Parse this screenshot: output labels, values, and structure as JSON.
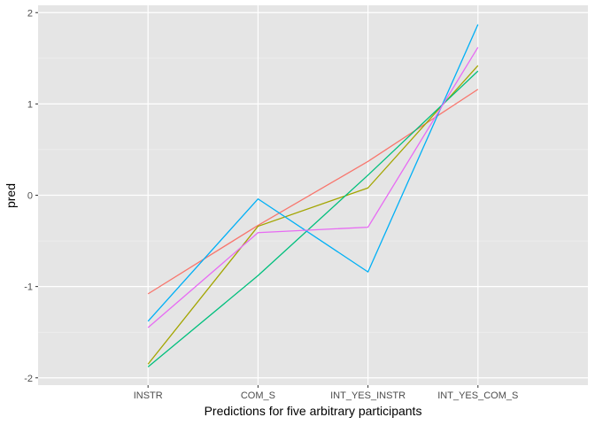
{
  "chart_data": {
    "type": "line",
    "categories": [
      "INSTR",
      "COM_S",
      "INT_YES_INSTR",
      "INT_YES_COM_S"
    ],
    "xlabel": "Predictions for five arbitrary participants",
    "ylabel": "pred",
    "ylim": [
      -2.08,
      2.08
    ],
    "yticks": [
      -2,
      -1,
      0,
      1,
      2
    ],
    "ytick_labels": [
      "-2",
      "-1",
      "0",
      "1",
      "2"
    ],
    "grid": true,
    "legend": "none",
    "background": "#e5e5e5",
    "series": [
      {
        "color": "#f8766d",
        "values": [
          -1.08,
          -0.33,
          0.37,
          1.16
        ]
      },
      {
        "color": "#a3a500",
        "values": [
          -1.85,
          -0.34,
          0.08,
          1.42
        ]
      },
      {
        "color": "#00bf7d",
        "values": [
          -1.88,
          -0.88,
          0.22,
          1.36
        ]
      },
      {
        "color": "#00b0f6",
        "values": [
          -1.38,
          -0.04,
          -0.84,
          1.87
        ]
      },
      {
        "color": "#e76bf3",
        "values": [
          -1.45,
          -0.41,
          -0.35,
          1.62
        ]
      }
    ]
  }
}
